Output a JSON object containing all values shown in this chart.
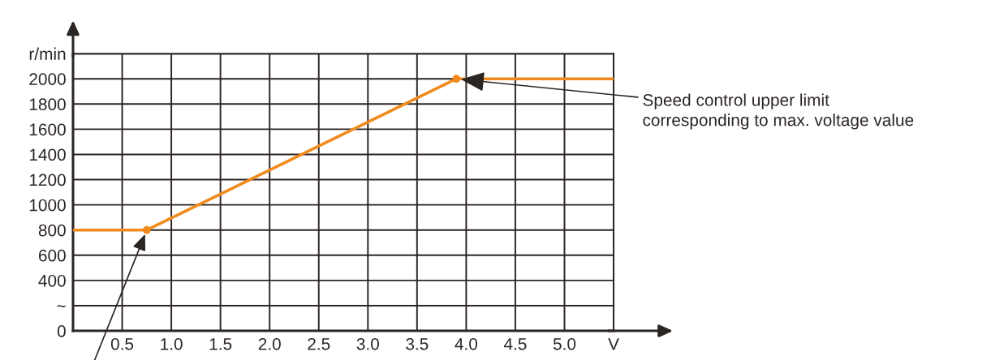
{
  "chart_data": {
    "type": "line",
    "x": [
      0,
      0.75,
      3.9,
      5.5
    ],
    "series": [
      {
        "color": "#f08a1c",
        "values": [
          800,
          800,
          2000,
          2000
        ]
      }
    ],
    "marker": "circle",
    "xlim": [
      0,
      5.5
    ],
    "xticks": [
      0.5,
      {
        "value": 1,
        "label": "1.0"
      },
      1.5,
      {
        "value": 2,
        "label": "2.0"
      },
      2.5,
      {
        "value": 3,
        "label": "3.0"
      },
      3.5,
      {
        "value": 4,
        "label": "4.0"
      },
      4.5,
      {
        "value": 5,
        "label": "5.0"
      },
      {
        "value": 5.5,
        "label": "V"
      }
    ],
    "ylim": [
      0,
      2200
    ],
    "yticks": [
      0,
      {
        "value": 200,
        "label": "~"
      },
      400,
      600,
      800,
      1000,
      1200,
      1400,
      1600,
      1800,
      2000,
      {
        "value": 2200,
        "label": "r/min"
      }
    ],
    "grid": true,
    "legend": false,
    "annotations": [
      {
        "text": "Speed control upper limit\ncorresponding to max. voltage value",
        "x": 3.9,
        "y": 2000
      }
    ]
  }
}
